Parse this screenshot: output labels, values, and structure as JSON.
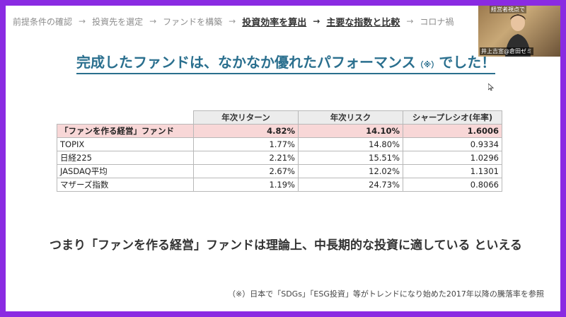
{
  "breadcrumb": [
    {
      "label": "前提条件の確認",
      "active": false
    },
    {
      "label": "投資先を選定",
      "active": false
    },
    {
      "label": "ファンドを構築",
      "active": false
    },
    {
      "label": "投資効率を算出",
      "active": true
    },
    {
      "label": "主要な指数と比較",
      "active": true
    },
    {
      "label": "コロナ禍",
      "active": false
    }
  ],
  "breadcrumb_arrow": "→",
  "title": "完成したファンドは、なかなか優れたパフォーマンス",
  "title_note": "（※）",
  "title_end": "でした！",
  "table": {
    "headers": [
      "年次リターン",
      "年次リスク",
      "シャープレシオ(年率)"
    ],
    "rows": [
      {
        "name": "「ファンを作る経営」ファンド",
        "return": "4.82%",
        "risk": "14.10%",
        "sharpe": "1.6006",
        "highlight": true
      },
      {
        "name": "TOPIX",
        "return": "1.77%",
        "risk": "14.80%",
        "sharpe": "0.9334",
        "highlight": false
      },
      {
        "name": "日経225",
        "return": "2.21%",
        "risk": "15.51%",
        "sharpe": "1.0296",
        "highlight": false
      },
      {
        "name": "JASDAQ平均",
        "return": "2.67%",
        "risk": "12.02%",
        "sharpe": "1.1301",
        "highlight": false
      },
      {
        "name": "マザーズ指数",
        "return": "1.19%",
        "risk": "24.73%",
        "sharpe": "0.8066",
        "highlight": false
      }
    ]
  },
  "conclusion": "つまり「ファンを作る経営」ファンドは理論上、中長期的な投資に適している といえる",
  "footnote": "（※）日本で「SDGs」「ESG投資」等がトレンドになり始めた2017年以降の騰落率を参照",
  "webcam": {
    "top_label": "経営者視点で",
    "name_label": "井上吉宣@倉田ゼミ"
  },
  "colors": {
    "frame": "#8a2be2",
    "title": "#2a6f8e",
    "highlight_row": "#f8d7d7"
  }
}
